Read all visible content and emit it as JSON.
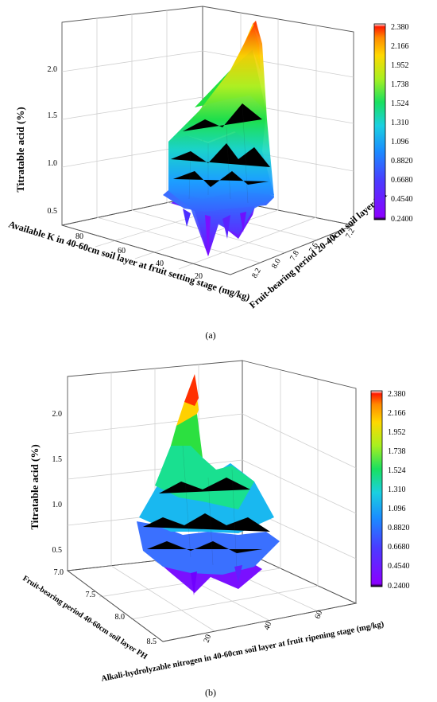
{
  "chart_data": [
    {
      "type": "surface3d",
      "panel_label": "(a)",
      "zlabel": "Titratable acid (%)",
      "xlabel": "Available K in 40-60cm soil layer at fruit setting stage (mg/kg)",
      "ylabel": "Fruit-bearing period 20-40cm soil layer PH",
      "x_ticks": [
        "80",
        "60",
        "40",
        "20"
      ],
      "y_ticks": [
        "7.2",
        "7.4",
        "7.6",
        "7.8",
        "8.0",
        "8.2"
      ],
      "z_ticks": [
        "0.5",
        "1.0",
        "1.5",
        "2.0"
      ],
      "zlim": [
        0.24,
        2.38
      ],
      "colorbar_ticks": [
        "2.380",
        "2.166",
        "1.952",
        "1.738",
        "1.524",
        "1.310",
        "1.096",
        "0.8820",
        "0.6680",
        "0.4540",
        "0.2400"
      ],
      "peak_z": 2.38,
      "min_z": 0.24
    },
    {
      "type": "surface3d",
      "panel_label": "(b)",
      "zlabel": "Titratable acid (%)",
      "xlabel": "Alkali-hydrolyzable nitrogen in 40-60cm soil layer at fruit ripening stage (mg/kg)",
      "ylabel": "Fruit-bearing period 40-60cm soil layer PH",
      "x_ticks": [
        "20",
        "40",
        "60"
      ],
      "y_ticks": [
        "7.0",
        "7.5",
        "8.0",
        "8.5"
      ],
      "z_ticks": [
        "0.5",
        "1.0",
        "1.5",
        "2.0"
      ],
      "zlim": [
        0.24,
        2.38
      ],
      "colorbar_ticks": [
        "2.380",
        "2.166",
        "1.952",
        "1.738",
        "1.524",
        "1.310",
        "1.096",
        "0.8820",
        "0.6680",
        "0.4540",
        "0.2400"
      ],
      "peak_z": 2.38,
      "min_z": 0.24
    }
  ]
}
